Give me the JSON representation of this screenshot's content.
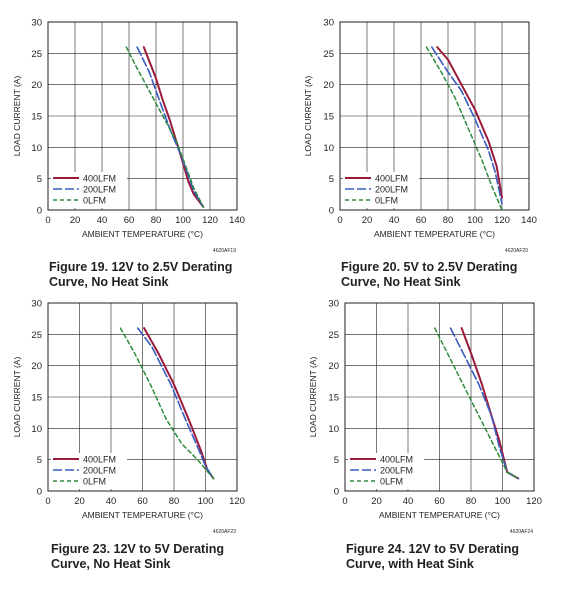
{
  "colors": {
    "s400": "#9b1b3a",
    "s200": "#3a5bc0",
    "s0": "#2e8b3e",
    "axis": "#231f20"
  },
  "chart_data": [
    {
      "type": "line",
      "xlabel": "AMBIENT TEMPERATURE (°C)",
      "ylabel": "LOAD CURRENT (A)",
      "xlim": [
        0,
        140
      ],
      "ylim": [
        0,
        30
      ],
      "xticks": [
        0,
        20,
        40,
        60,
        80,
        100,
        120,
        140
      ],
      "yticks": [
        0,
        5,
        10,
        15,
        20,
        25,
        30
      ],
      "grid": true,
      "legend_position": "bottom-left",
      "code": "4620AF19",
      "caption": [
        "Figure 19. 12V to 2.5V Derating",
        "Curve, No Heat Sink"
      ],
      "series": [
        {
          "name": "400LFM",
          "style": "solid",
          "x": [
            71,
            80,
            85,
            90,
            95,
            100,
            104,
            108,
            115
          ],
          "y": [
            26,
            21,
            17.5,
            14.5,
            11,
            7.5,
            4.5,
            2.5,
            0.5
          ]
        },
        {
          "name": "200LFM",
          "style": "longdash",
          "x": [
            66,
            75,
            85,
            92,
            98,
            103,
            108,
            115
          ],
          "y": [
            26,
            22,
            16,
            12,
            9,
            6,
            3,
            0.5
          ]
        },
        {
          "name": "0LFM",
          "style": "dash",
          "x": [
            58,
            65,
            75,
            85,
            95,
            102,
            108,
            115
          ],
          "y": [
            26,
            23,
            19,
            15,
            11,
            7,
            3.5,
            0.5
          ]
        }
      ]
    },
    {
      "type": "line",
      "xlabel": "AMBIENT TEMPERATURE (°C)",
      "ylabel": "LOAD CURRENT (A)",
      "xlim": [
        0,
        140
      ],
      "ylim": [
        0,
        30
      ],
      "xticks": [
        0,
        20,
        40,
        60,
        80,
        100,
        120,
        140
      ],
      "yticks": [
        0,
        5,
        10,
        15,
        20,
        25,
        30
      ],
      "grid": true,
      "legend_position": "bottom-left",
      "code": "4620AF20",
      "caption": [
        "Figure 20. 5V to 2.5V Derating",
        "Curve, No Heat Sink"
      ],
      "series": [
        {
          "name": "400LFM",
          "style": "solid",
          "x": [
            72,
            80,
            90,
            100,
            110,
            116,
            120
          ],
          "y": [
            26,
            24,
            20,
            16,
            11,
            7,
            2
          ]
        },
        {
          "name": "200LFM",
          "style": "longdash",
          "x": [
            68,
            80,
            90,
            100,
            110,
            115,
            120
          ],
          "y": [
            26,
            22,
            19,
            14.5,
            9.5,
            6,
            1
          ]
        },
        {
          "name": "0LFM",
          "style": "dash",
          "x": [
            64,
            75,
            85,
            95,
            105,
            113,
            120
          ],
          "y": [
            26,
            22,
            18,
            13,
            8,
            3.5,
            0
          ]
        }
      ]
    },
    {
      "type": "line",
      "xlabel": "AMBIENT TEMPERATURE (°C)",
      "ylabel": "LOAD CURRENT (A)",
      "xlim": [
        0,
        120
      ],
      "ylim": [
        0,
        30
      ],
      "xticks": [
        0,
        20,
        40,
        60,
        80,
        100,
        120
      ],
      "yticks": [
        0,
        5,
        10,
        15,
        20,
        25,
        30
      ],
      "grid": true,
      "legend_position": "bottom-left",
      "code": "4620AF23",
      "caption": [
        "Figure 23. 12V to 5V Derating",
        "Curve, No Heat Sink"
      ],
      "series": [
        {
          "name": "400LFM",
          "style": "solid",
          "x": [
            61,
            70,
            80,
            90,
            97,
            101,
            105
          ],
          "y": [
            26,
            22,
            17,
            11,
            6.5,
            3.5,
            2
          ]
        },
        {
          "name": "200LFM",
          "style": "longdash",
          "x": [
            57,
            66,
            78,
            88,
            95,
            100,
            105
          ],
          "y": [
            26,
            23,
            17,
            11,
            7,
            4,
            2
          ]
        },
        {
          "name": "0LFM",
          "style": "dash",
          "x": [
            46,
            55,
            65,
            75,
            85,
            95,
            105
          ],
          "y": [
            26,
            22,
            17,
            11.5,
            7.5,
            5,
            2
          ]
        }
      ]
    },
    {
      "type": "line",
      "xlabel": "AMBIENT TEMPERATURE (°C)",
      "ylabel": "LOAD CURRENT (A)",
      "xlim": [
        0,
        120
      ],
      "ylim": [
        0,
        30
      ],
      "xticks": [
        0,
        20,
        40,
        60,
        80,
        100,
        120
      ],
      "yticks": [
        0,
        5,
        10,
        15,
        20,
        25,
        30
      ],
      "grid": true,
      "legend_position": "bottom-left",
      "code": "4620AF24",
      "caption": [
        "Figure 24. 12V to 5V Derating",
        "Curve, with Heat Sink"
      ],
      "series": [
        {
          "name": "400LFM",
          "style": "solid",
          "x": [
            74,
            80,
            87,
            93,
            98,
            103,
            110
          ],
          "y": [
            26,
            22,
            17,
            12,
            8,
            3,
            2
          ]
        },
        {
          "name": "200LFM",
          "style": "longdash",
          "x": [
            67,
            75,
            85,
            93,
            98,
            103,
            110
          ],
          "y": [
            26,
            22,
            17,
            12,
            7,
            3,
            2
          ]
        },
        {
          "name": "0LFM",
          "style": "dash",
          "x": [
            57,
            65,
            75,
            85,
            95,
            103,
            110
          ],
          "y": [
            26,
            22,
            17,
            12,
            7,
            3,
            2
          ]
        }
      ]
    }
  ]
}
